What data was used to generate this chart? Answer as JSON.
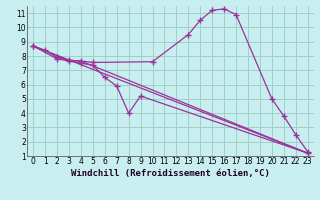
{
  "background_color": "#c8eef0",
  "grid_color": "#a0cfc8",
  "line_color": "#993399",
  "marker": "+",
  "markersize": 4,
  "linewidth": 0.9,
  "xlabel": "Windchill (Refroidissement éolien,°C)",
  "xlim": [
    -0.5,
    23.5
  ],
  "ylim": [
    1,
    11.5
  ],
  "xticks": [
    0,
    1,
    2,
    3,
    4,
    5,
    6,
    7,
    8,
    9,
    10,
    11,
    12,
    13,
    14,
    15,
    16,
    17,
    18,
    19,
    20,
    21,
    22,
    23
  ],
  "yticks": [
    1,
    2,
    3,
    4,
    5,
    6,
    7,
    8,
    9,
    10,
    11
  ],
  "xlabel_fontsize": 6.5,
  "tick_fontsize": 5.5,
  "line1_x": [
    0,
    1,
    2,
    3,
    4,
    5,
    10,
    13,
    14,
    15,
    16,
    17,
    20,
    21,
    22,
    23
  ],
  "line1_y": [
    8.7,
    8.4,
    7.9,
    7.7,
    7.65,
    7.55,
    7.6,
    9.5,
    10.5,
    11.2,
    11.3,
    10.9,
    5.0,
    3.8,
    2.5,
    1.3
  ],
  "line2_x": [
    0,
    2,
    3,
    4,
    5,
    6,
    7,
    8,
    9,
    23
  ],
  "line2_y": [
    8.7,
    7.8,
    7.65,
    7.5,
    7.35,
    6.5,
    5.9,
    4.0,
    5.2,
    1.2
  ],
  "line3_x": [
    0,
    23
  ],
  "line3_y": [
    8.7,
    1.2
  ],
  "line4_x": [
    0,
    3,
    4,
    23
  ],
  "line4_y": [
    8.7,
    7.7,
    7.65,
    1.2
  ]
}
